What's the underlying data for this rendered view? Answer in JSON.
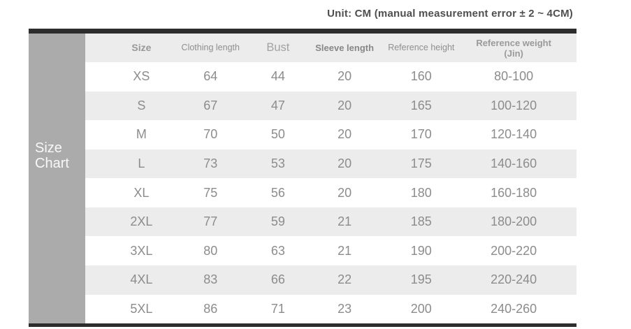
{
  "title": "Unit: CM (manual measurement error ± 2 ~ 4CM)",
  "sidebar": {
    "label_line1": "Size",
    "label_line2": "Chart"
  },
  "table": {
    "columns": [
      {
        "key": "size",
        "label": "Size"
      },
      {
        "key": "clothing_length",
        "label": "Clothing length"
      },
      {
        "key": "bust",
        "label": "Bust"
      },
      {
        "key": "sleeve_length",
        "label": "Sleeve length"
      },
      {
        "key": "reference_height",
        "label": "Reference height"
      },
      {
        "key": "reference_weight",
        "label": "Reference weight",
        "label_line2": "(Jin)"
      }
    ],
    "rows": [
      [
        "XS",
        "64",
        "44",
        "20",
        "160",
        "80-100"
      ],
      [
        "S",
        "67",
        "47",
        "20",
        "165",
        "100-120"
      ],
      [
        "M",
        "70",
        "50",
        "20",
        "170",
        "120-140"
      ],
      [
        "L",
        "73",
        "53",
        "20",
        "175",
        "140-160"
      ],
      [
        "XL",
        "75",
        "56",
        "20",
        "180",
        "160-180"
      ],
      [
        "2XL",
        "77",
        "59",
        "21",
        "185",
        "180-200"
      ],
      [
        "3XL",
        "80",
        "63",
        "21",
        "190",
        "200-220"
      ],
      [
        "4XL",
        "83",
        "66",
        "22",
        "195",
        "220-240"
      ],
      [
        "5XL",
        "86",
        "71",
        "23",
        "200",
        "240-260"
      ]
    ]
  },
  "colors": {
    "bar": "#2d2d2d",
    "sidebar_bg": "#ababab",
    "stripe_bg": "#ececec",
    "data_text": "#8c8c8c",
    "title_text": "#4f4f4f",
    "sidebar_text": "#f8f8f8"
  }
}
